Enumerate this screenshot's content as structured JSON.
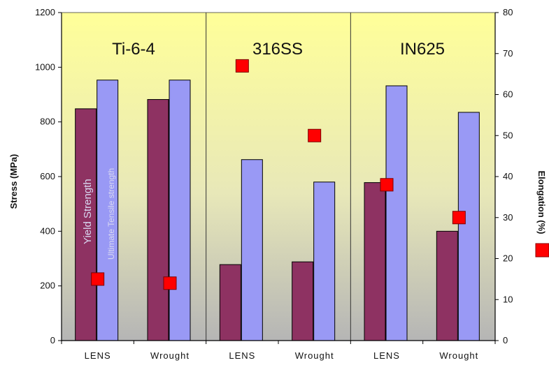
{
  "chart_data": {
    "type": "bar",
    "groups": [
      "Ti-6-4",
      "316SS",
      "IN625"
    ],
    "categories": [
      "LENS",
      "Wrought",
      "LENS",
      "Wrought",
      "LENS",
      "Wrought"
    ],
    "series": [
      {
        "name": "Yield Strength",
        "axis": "left",
        "values": [
          848,
          882,
          278,
          288,
          578,
          400
        ],
        "color": "#8e3262"
      },
      {
        "name": "Ultimate Tensile strength",
        "axis": "left",
        "values": [
          953,
          953,
          662,
          580,
          932,
          835
        ],
        "color": "#9999f5"
      },
      {
        "axis": "right",
        "marker": "square",
        "values": [
          15,
          14,
          67,
          50,
          38,
          30
        ],
        "color": "#ff0000"
      }
    ],
    "ylabel": "Stress (MPa)",
    "y2label": "Elongation (%)",
    "ylim": [
      0,
      1200
    ],
    "y2lim": [
      0,
      80
    ],
    "yticks": [
      "0",
      "200",
      "400",
      "600",
      "800",
      "1000",
      "1200"
    ],
    "y2ticks": [
      "0",
      "10",
      "20",
      "30",
      "40",
      "50",
      "60",
      "70",
      "80"
    ],
    "background_gradient": [
      "#ffff99",
      "#b8b8b8"
    ]
  }
}
